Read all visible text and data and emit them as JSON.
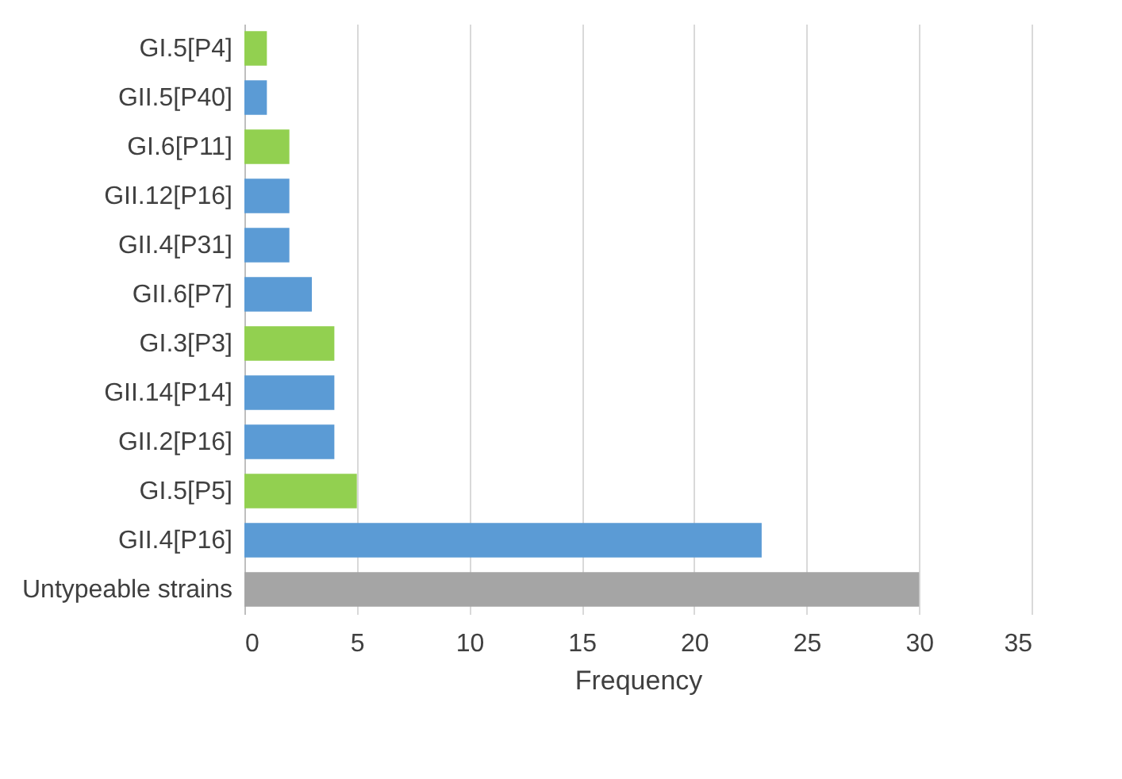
{
  "chart_data": {
    "type": "bar",
    "orientation": "horizontal",
    "xlabel": "Frequency",
    "categories": [
      "GI.5[P4]",
      "GII.5[P40]",
      "GI.6[P11]",
      "GII.12[P16]",
      "GII.4[P31]",
      "GII.6[P7]",
      "GI.3[P3]",
      "GII.14[P14]",
      "GII.2[P16]",
      "GI.5[P5]",
      "GII.4[P16]",
      "Untypeable strains"
    ],
    "values": [
      1,
      1,
      2,
      2,
      2,
      3,
      4,
      4,
      4,
      5,
      23,
      30
    ],
    "colors": [
      "#92d050",
      "#5b9bd5",
      "#92d050",
      "#5b9bd5",
      "#5b9bd5",
      "#5b9bd5",
      "#92d050",
      "#5b9bd5",
      "#5b9bd5",
      "#92d050",
      "#5b9bd5",
      "#a5a5a5"
    ],
    "xlim": [
      0,
      35
    ],
    "xticks": [
      0,
      5,
      10,
      15,
      20,
      25,
      30,
      35
    ],
    "grid": "x"
  }
}
